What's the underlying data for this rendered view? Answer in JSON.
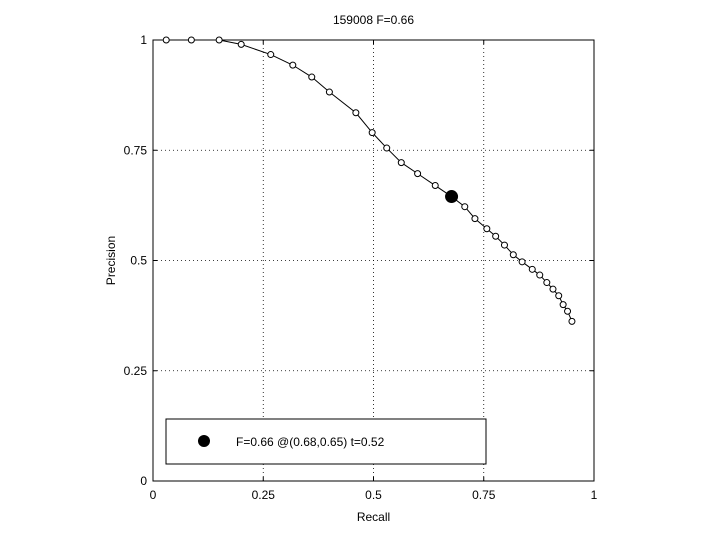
{
  "chart_data": {
    "type": "line",
    "title": "159008 F=0.66",
    "xlabel": "Recall",
    "ylabel": "Precision",
    "xlim": [
      0,
      1
    ],
    "ylim": [
      0,
      1
    ],
    "xticks": [
      0,
      0.25,
      0.5,
      0.75,
      1
    ],
    "xtick_labels": [
      "0",
      "0.25",
      "0.5",
      "0.75",
      "1"
    ],
    "yticks": [
      0,
      0.25,
      0.5,
      0.75,
      1
    ],
    "ytick_labels": [
      "0",
      "0.25",
      "0.5",
      "0.75",
      "1"
    ],
    "grid": true,
    "legend_position": "bottom-left",
    "series": [
      {
        "marker": "open-circle",
        "color": "#000000",
        "x": [
          0.03,
          0.087,
          0.15,
          0.2,
          0.267,
          0.317,
          0.36,
          0.4,
          0.46,
          0.497,
          0.53,
          0.563,
          0.6,
          0.64,
          0.677,
          0.707,
          0.73,
          0.757,
          0.777,
          0.797,
          0.817,
          0.837,
          0.86,
          0.877,
          0.893,
          0.907,
          0.92,
          0.93,
          0.94,
          0.95
        ],
        "y": [
          1.0,
          1.0,
          1.0,
          0.99,
          0.967,
          0.943,
          0.916,
          0.882,
          0.835,
          0.79,
          0.755,
          0.722,
          0.697,
          0.67,
          0.645,
          0.622,
          0.595,
          0.572,
          0.555,
          0.535,
          0.513,
          0.497,
          0.48,
          0.467,
          0.45,
          0.435,
          0.42,
          0.4,
          0.385,
          0.362
        ]
      }
    ],
    "best_point": {
      "x": 0.677,
      "y": 0.645,
      "marker": "filled-circle",
      "color": "#000000"
    },
    "legend": {
      "label": "F=0.66 @(0.68,0.65) t=0.52"
    }
  }
}
